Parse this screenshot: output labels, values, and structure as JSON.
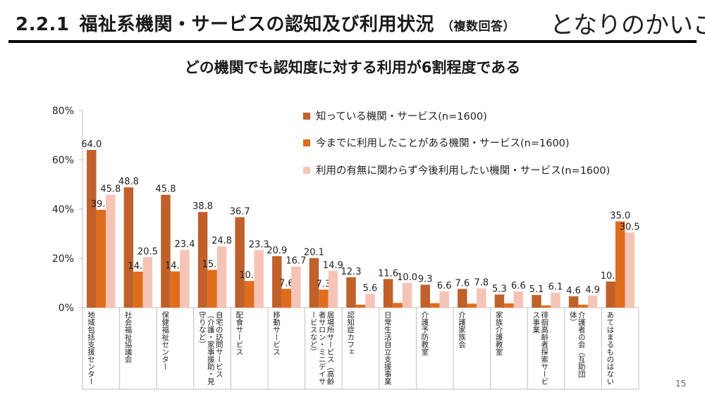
{
  "slide": {
    "section": "2.2.1",
    "title": "福祉系機関・サービスの認知及び利用状況",
    "title_note": "（複数回答）",
    "logo": "となりのかいご",
    "headline": "どの機関でも認知度に対する利用が6割程度である",
    "page_number": "15"
  },
  "colors": {
    "known": "#c0612b",
    "used": "#e06d1e",
    "want": "#f6c4b6"
  },
  "chart_data": {
    "type": "bar",
    "title": "",
    "xlabel": "",
    "ylabel": "",
    "ylim": [
      0,
      80
    ],
    "yticks": [
      "0%",
      "20%",
      "40%",
      "60%",
      "80%"
    ],
    "legend_position": "top-right",
    "categories": [
      "地域包括支援センター",
      "社会福祉協議会",
      "保健福祉センター",
      "自宅の訪問サービス（介護・家事援助・見守りなど）",
      "配食サービス",
      "移動サービス",
      "居場所サービス（高齢者サロン・ミニデイサービスなど）",
      "認知症カフェ",
      "日常生活自立支援事業",
      "介護予防教室",
      "介護家族会",
      "家族介護教室",
      "徘徊高齢者探索サービス事業",
      "介護者の会（互助団体）",
      "あてはまるものはない"
    ],
    "series": [
      {
        "name": "知っている機関・サービス(n=1600)",
        "values": [
          64.0,
          48.8,
          45.8,
          38.8,
          36.7,
          20.9,
          20.1,
          12.3,
          11.6,
          9.3,
          7.6,
          5.3,
          5.1,
          4.6,
          10.6
        ],
        "labels": [
          "64.0",
          "48.8",
          "45.8",
          "38.8",
          "36.7",
          "20.9",
          "20.1",
          "12.3",
          "11.6",
          "9.3",
          "7.6",
          "5.3",
          "5.1",
          "4.6",
          "10.6"
        ]
      },
      {
        "name": "今までに利用したことがある機関・サービス(n=1600)",
        "values": [
          39.7,
          14.6,
          14.7,
          15.3,
          10.8,
          7.6,
          7.3,
          1.2,
          1.9,
          1.8,
          1.6,
          1.7,
          0.9,
          1.2,
          35.0
        ],
        "labels": [
          "39.7",
          "14.6",
          "14.7",
          "15.3",
          "10.8",
          "7.6",
          "7.3",
          "",
          "",
          "",
          "",
          "",
          "",
          "",
          "35.0"
        ]
      },
      {
        "name": "利用の有無に関わらず今後利用したい機関・サービス(n=1600)",
        "values": [
          45.8,
          20.5,
          23.4,
          24.8,
          23.3,
          16.7,
          14.9,
          5.6,
          10.0,
          6.6,
          7.8,
          6.6,
          6.1,
          4.9,
          30.5
        ],
        "labels": [
          "45.8",
          "20.5",
          "23.4",
          "24.8",
          "23.3",
          "16.7",
          "14.9",
          "5.6",
          "10.0",
          "6.6",
          "7.8",
          "6.6",
          "6.1",
          "4.9",
          "30.5"
        ]
      }
    ]
  }
}
